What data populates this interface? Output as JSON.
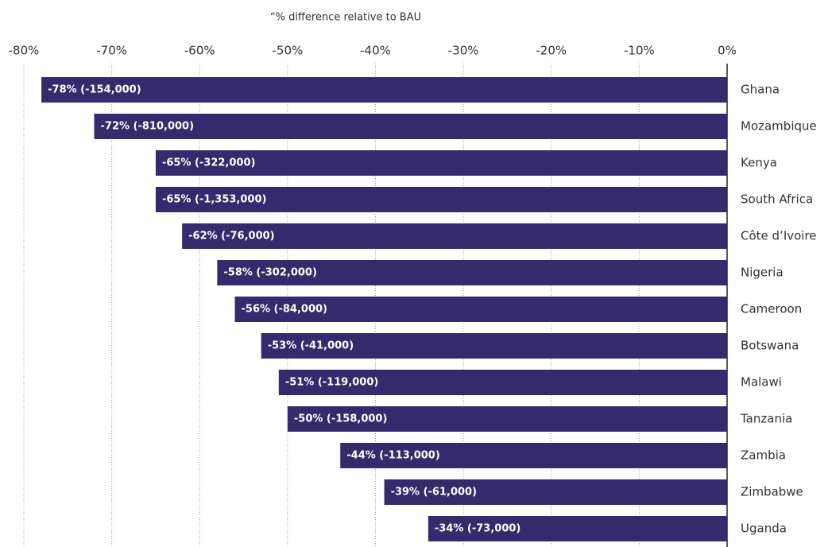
{
  "chart_data": {
    "type": "bar",
    "orientation": "horizontal",
    "x_label": "“% difference relative to BAU",
    "categories": [
      "Ghana",
      "Mozambique",
      "Kenya",
      "South Africa",
      "Côte d’Ivoire",
      "Nigeria",
      "Cameroon",
      "Botswana",
      "Malawi",
      "Tanzania",
      "Zambia",
      "Zimbabwe",
      "Uganda"
    ],
    "values": [
      -78,
      -72,
      -65,
      -65,
      -62,
      -58,
      -56,
      -53,
      -51,
      -50,
      -44,
      -39,
      -34
    ],
    "value_labels": [
      "-78% (-154,000)",
      "-72% (-810,000)",
      "-65% (-322,000)",
      "-65% (-1,353,000)",
      "-62% (-76,000)",
      "-58% (-302,000)",
      "-56% (-84,000)",
      "-53% (-41,000)",
      "-51% (-119,000)",
      "-50% (-158,000)",
      "-44% (-113,000)",
      "-39% (-61,000)",
      "-34% (-73,000)"
    ],
    "color": "#352a6b",
    "xlim": [
      -80,
      0
    ],
    "xticks": [
      {
        "value": -80,
        "label": "-80%"
      },
      {
        "value": -70,
        "label": "-70%"
      },
      {
        "value": -60,
        "label": "-60%"
      },
      {
        "value": -50,
        "label": "-50%"
      },
      {
        "value": -40,
        "label": "-40%"
      },
      {
        "value": -30,
        "label": "-30%"
      },
      {
        "value": -20,
        "label": "-20%"
      },
      {
        "value": -10,
        "label": "-10%"
      },
      {
        "value": 0,
        "label": "0%"
      }
    ],
    "grid": true
  }
}
